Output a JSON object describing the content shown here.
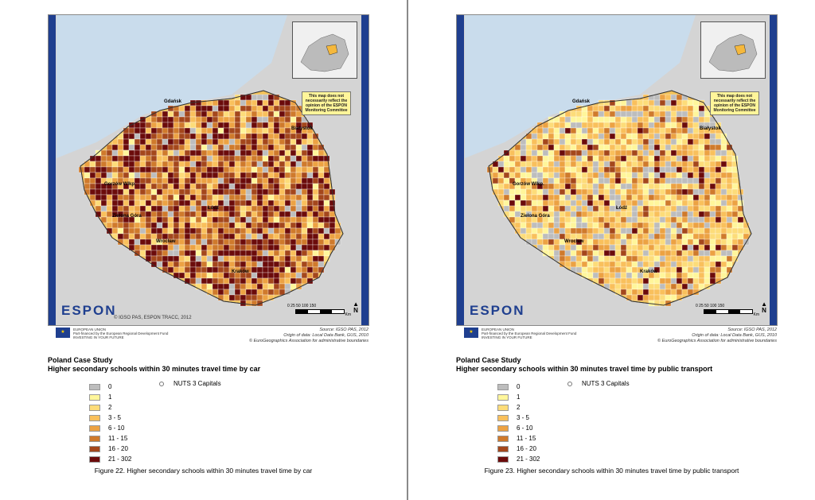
{
  "pages": [
    {
      "id": "left",
      "palette_weights": [
        0.06,
        0.03,
        0.05,
        0.1,
        0.13,
        0.15,
        0.2,
        0.28
      ],
      "case_title": "Poland Case Study",
      "case_subtitle": "Higher secondary schools within 30 minutes travel time by car",
      "figure_caption": "Figure 22. Higher secondary schools within 30 minutes travel time by car"
    },
    {
      "id": "right",
      "palette_weights": [
        0.16,
        0.14,
        0.2,
        0.22,
        0.12,
        0.07,
        0.05,
        0.04
      ],
      "case_title": "Poland Case Study",
      "case_subtitle": "Higher secondary schools within 30 minutes travel time by public transport",
      "figure_caption": "Figure 23. Higher secondary schools within 30 minutes travel time by public transport"
    }
  ],
  "legend": [
    {
      "label": "0",
      "color": "#bdbdbd"
    },
    {
      "label": "1",
      "color": "#fff69b"
    },
    {
      "label": "2",
      "color": "#fddc79"
    },
    {
      "label": "3 - 5",
      "color": "#f9c05c"
    },
    {
      "label": "6 - 10",
      "color": "#eca243"
    },
    {
      "label": "11 - 15",
      "color": "#cf7a2c"
    },
    {
      "label": "16 - 20",
      "color": "#a4471c"
    },
    {
      "label": "21 - 302",
      "color": "#6b0b0b"
    }
  ],
  "capitals_label": "NUTS 3 Capitals",
  "map": {
    "disclaimer": "This map does not necessarily reflect the opinion of the ESPON Monitoring Committee",
    "logo": "ESPON",
    "copyright": "© IGSO PAS, ESPON TRACC, 2012",
    "scale_labels": "0   25  50      100     150",
    "scale_unit": "Km",
    "north": "N",
    "cities": [
      {
        "name": "Gdańsk"
      },
      {
        "name": "Białystok"
      },
      {
        "name": "Gorzów Wlkp."
      },
      {
        "name": "Zielona Góra"
      },
      {
        "name": "Wrocław"
      },
      {
        "name": "Łódź"
      },
      {
        "name": "Kraków"
      }
    ]
  },
  "eu": {
    "flag": "★",
    "line1": "EUROPEAN UNION",
    "line2": "Part-financed by the European Regional Development Fund",
    "line3": "INVESTING IN YOUR FUTURE"
  },
  "sources": {
    "line1": "Source: IGSO PAS, 2012",
    "line2": "Origin of data: Local Data Bank, GUS, 2010",
    "line3": "© EuroGeographics Association for administrative boundaries"
  }
}
